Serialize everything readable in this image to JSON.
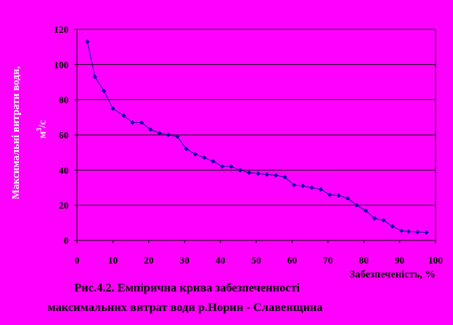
{
  "chart_data": {
    "type": "line",
    "title": "",
    "xlabel": "Забезпеченість, %",
    "ylabel_line1": "Максимальні витрати води,",
    "ylabel_unit": "м",
    "ylabel_sup": "3",
    "ylabel_unit_tail": "/с",
    "xlim": [
      0,
      100
    ],
    "ylim": [
      0,
      120
    ],
    "x_ticks": [
      0,
      10,
      20,
      30,
      40,
      50,
      60,
      70,
      80,
      90,
      100
    ],
    "y_ticks": [
      0,
      20,
      40,
      60,
      80,
      100,
      120
    ],
    "y_tick_labels": [
      "0",
      "20",
      "40",
      "60",
      "80",
      "100",
      "120"
    ],
    "grid": "horizontal",
    "series": [
      {
        "color": "#0000A0",
        "x": [
          2.9,
          5,
          7.5,
          10,
          13,
          15.5,
          18,
          20.5,
          23,
          25.5,
          28,
          30.5,
          33,
          35.5,
          38,
          40.5,
          43,
          45.5,
          48,
          50.5,
          53,
          55.5,
          58,
          60.5,
          63,
          65.5,
          68,
          70.5,
          73,
          75.5,
          78,
          80.5,
          83,
          85.5,
          88,
          90.5,
          92.5,
          95,
          97.5
        ],
        "y": [
          113,
          93,
          85,
          75,
          71,
          67,
          67,
          63,
          61,
          60,
          59,
          52,
          49,
          47,
          45,
          42,
          42,
          40,
          38.5,
          38,
          37.5,
          37,
          36,
          31.5,
          31,
          30,
          29,
          26,
          25.5,
          24,
          20,
          17,
          12.5,
          11.5,
          8,
          5.5,
          5,
          4.8,
          4.5
        ]
      }
    ]
  },
  "caption": {
    "line1": "Рис.4.2. Емпірична крива забезпеченності",
    "line2": "максимальних витрат води р.Норин - Славенщина"
  }
}
